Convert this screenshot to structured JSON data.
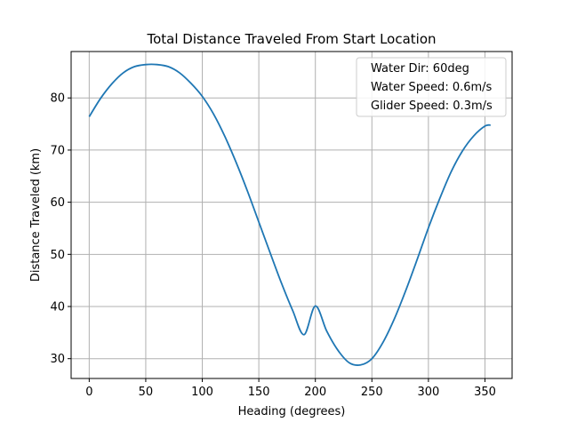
{
  "chart_data": {
    "type": "line",
    "title": "Total Distance Traveled From Start Location",
    "xlabel": "Heading (degrees)",
    "ylabel": "Distance Traveled (km)",
    "xlim": [
      -16,
      374
    ],
    "ylim": [
      26.2,
      88.9
    ],
    "xticks": [
      0,
      50,
      100,
      150,
      200,
      250,
      300,
      350
    ],
    "yticks": [
      30,
      40,
      50,
      60,
      70,
      80
    ],
    "grid": true,
    "legend_position": "top-right",
    "legend_entries": [
      "Water Dir: 60deg",
      "Water Speed: 0.6m/s",
      "Glider Speed: 0.3m/s"
    ],
    "line_color": "#1f77b4",
    "series": [
      {
        "x": [
          0,
          10,
          20,
          30,
          40,
          50,
          60,
          70,
          80,
          90,
          100,
          110,
          120,
          130,
          140,
          150,
          160,
          170,
          180,
          190,
          200,
          210,
          220,
          230,
          240,
          250,
          260,
          270,
          280,
          290,
          300,
          310,
          320,
          330,
          340,
          350,
          355
        ],
        "values": [
          76.4,
          79.9,
          82.7,
          84.8,
          86.0,
          86.4,
          86.4,
          86.0,
          84.8,
          82.8,
          80.3,
          76.9,
          72.6,
          67.6,
          62.1,
          56.2,
          50.3,
          44.5,
          39.2,
          34.6,
          40.1,
          35.3,
          31.6,
          29.2,
          28.8,
          30.0,
          33.2,
          37.7,
          43.1,
          49.0,
          55.1,
          60.7,
          65.8,
          69.8,
          72.7,
          74.6,
          74.8
        ]
      }
    ]
  }
}
